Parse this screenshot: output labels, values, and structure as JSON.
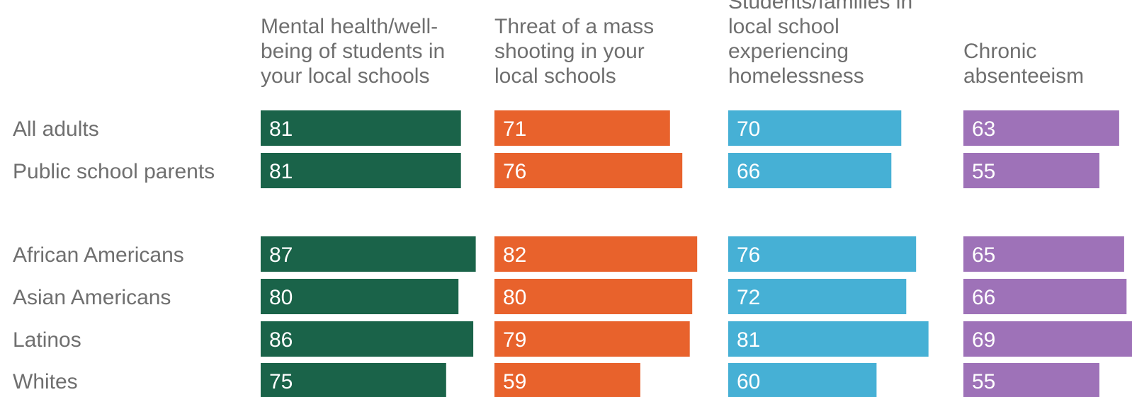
{
  "chart_data": {
    "type": "bar",
    "orientation": "horizontal",
    "layout": "small-multiples",
    "categories": [
      "All adults",
      "Public school parents",
      "African Americans",
      "Asian Americans",
      "Latinos",
      "Whites"
    ],
    "series": [
      {
        "name": "Mental health/well-being of students in your local schools",
        "title_lines": [
          "Mental health/well-",
          "being of students in",
          "your local schools"
        ],
        "color": "#1a6349",
        "values": [
          81,
          81,
          87,
          80,
          86,
          75
        ]
      },
      {
        "name": "Threat of a mass shooting in your local schools",
        "title_lines": [
          "Threat of a mass",
          "shooting in your",
          "local schools"
        ],
        "color": "#e8622c",
        "values": [
          71,
          76,
          82,
          80,
          79,
          59
        ]
      },
      {
        "name": "Students/families in local school experiencing homelessness",
        "title_lines": [
          "Students/families in",
          "local school",
          "experiencing",
          "homelessness"
        ],
        "color": "#46b0d5",
        "values": [
          70,
          66,
          76,
          72,
          81,
          60
        ]
      },
      {
        "name": "Chronic absenteeism",
        "title_lines": [
          "Chronic",
          "absenteeism"
        ],
        "color": "#9e72b8",
        "values": [
          63,
          55,
          65,
          66,
          69,
          55
        ]
      }
    ],
    "title": "",
    "xlabel": "",
    "ylabel": "",
    "xlim": [
      0,
      100
    ],
    "grid": false,
    "legend": "none",
    "data_labels": "inside-left"
  }
}
